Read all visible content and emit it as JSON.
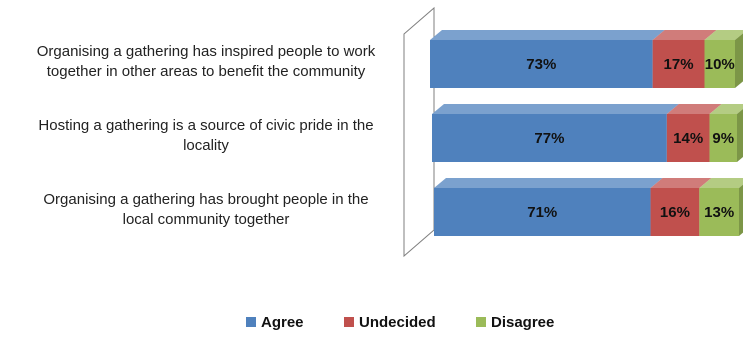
{
  "chart_data": {
    "type": "bar",
    "orientation": "horizontal",
    "stacked": true,
    "percent": true,
    "three_d": true,
    "categories": [
      "Organising a gathering has inspired people to work together in other areas to benefit the community",
      "Hosting a gathering is a source of civic pride in the locality",
      "Organising a gathering has brought people in the local community together"
    ],
    "category_lines": [
      [
        "Organising a gathering has inspired people to work",
        "together in other areas to benefit the community"
      ],
      [
        "Hosting a gathering is a source of civic pride in the",
        "locality"
      ],
      [
        "Organising a gathering has brought people in the",
        "local community together"
      ]
    ],
    "series": [
      {
        "name": "Agree",
        "values": [
          73,
          77,
          71
        ],
        "labels": [
          "73%",
          "77%",
          "71%"
        ],
        "color": "#4F81BD"
      },
      {
        "name": "Undecided",
        "values": [
          17,
          14,
          16
        ],
        "labels": [
          "17%",
          "14%",
          "16%"
        ],
        "color": "#C0504D"
      },
      {
        "name": "Disagree",
        "values": [
          10,
          9,
          13
        ],
        "labels": [
          "10%",
          "9%",
          "13%"
        ],
        "color": "#9BBB59"
      }
    ],
    "xlim": [
      0,
      100
    ],
    "grid": false,
    "legend_position": "bottom"
  }
}
